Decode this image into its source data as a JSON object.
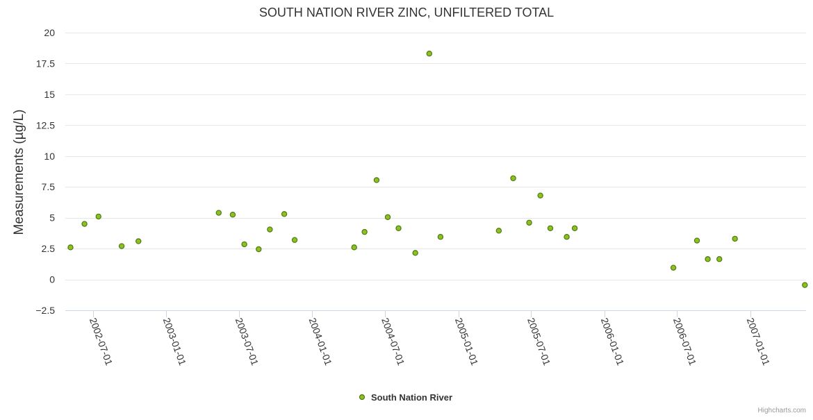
{
  "colors": {
    "marker_fill": "#90c020",
    "marker_stroke": "#4a7a12",
    "grid": "#e6e6e6",
    "axis": "#ccd6eb",
    "text": "#333333",
    "credits": "#999999"
  },
  "credits": "Highcharts.com",
  "chart_data": {
    "type": "scatter",
    "title": "SOUTH NATION RIVER ZINC, UNFILTERED TOTAL",
    "ylabel": "Measurements (µg/L)",
    "xlabel": "",
    "ylim": [
      -2.5,
      20
    ],
    "yticks": [
      -2.5,
      0,
      2.5,
      5,
      7.5,
      10,
      12.5,
      15,
      17.5,
      20
    ],
    "ytick_labels": [
      "−2.5",
      "0",
      "2.5",
      "5",
      "7.5",
      "10",
      "12.5",
      "15",
      "17.5",
      "20"
    ],
    "xlim": [
      "2002-04-23",
      "2007-05-21"
    ],
    "xticks": [
      "2002-07-01",
      "2003-01-01",
      "2003-07-01",
      "2004-01-01",
      "2004-07-01",
      "2005-01-01",
      "2005-07-01",
      "2006-01-01",
      "2006-07-01",
      "2007-01-01"
    ],
    "grid": true,
    "legend_position": "bottom-center",
    "series": [
      {
        "name": "South Nation River",
        "points": [
          {
            "x": "2002-05-06",
            "y": 2.6
          },
          {
            "x": "2002-06-10",
            "y": 4.5
          },
          {
            "x": "2002-07-15",
            "y": 5.1
          },
          {
            "x": "2002-09-11",
            "y": 2.7
          },
          {
            "x": "2002-10-23",
            "y": 3.1
          },
          {
            "x": "2003-05-12",
            "y": 5.4
          },
          {
            "x": "2003-06-16",
            "y": 5.25
          },
          {
            "x": "2003-07-15",
            "y": 2.85
          },
          {
            "x": "2003-08-20",
            "y": 2.45
          },
          {
            "x": "2003-09-17",
            "y": 4.05
          },
          {
            "x": "2003-10-23",
            "y": 5.3
          },
          {
            "x": "2003-11-18",
            "y": 3.2
          },
          {
            "x": "2004-04-15",
            "y": 2.6
          },
          {
            "x": "2004-05-11",
            "y": 3.85
          },
          {
            "x": "2004-06-10",
            "y": 8.05
          },
          {
            "x": "2004-07-08",
            "y": 5.05
          },
          {
            "x": "2004-08-04",
            "y": 4.15
          },
          {
            "x": "2004-09-15",
            "y": 2.15
          },
          {
            "x": "2004-10-20",
            "y": 18.3
          },
          {
            "x": "2004-11-17",
            "y": 3.45
          },
          {
            "x": "2005-04-12",
            "y": 3.95
          },
          {
            "x": "2005-05-18",
            "y": 8.2
          },
          {
            "x": "2005-06-27",
            "y": 4.6
          },
          {
            "x": "2005-07-25",
            "y": 6.8
          },
          {
            "x": "2005-08-19",
            "y": 4.15
          },
          {
            "x": "2005-09-29",
            "y": 3.45
          },
          {
            "x": "2005-10-19",
            "y": 4.15
          },
          {
            "x": "2006-06-23",
            "y": 0.95
          },
          {
            "x": "2006-08-21",
            "y": 3.15
          },
          {
            "x": "2006-09-17",
            "y": 1.65
          },
          {
            "x": "2006-10-16",
            "y": 1.65
          },
          {
            "x": "2006-11-24",
            "y": 3.3
          },
          {
            "x": "2007-05-18",
            "y": -0.45
          }
        ]
      }
    ]
  }
}
